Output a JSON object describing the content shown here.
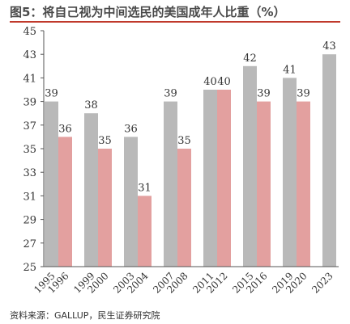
{
  "figure": {
    "title": "图5：将自己视为中间选民的美国成年人比重（%）",
    "source": "资料来源：GALLUP，民生证券研究院"
  },
  "colors": {
    "gray": "#b9b9b9",
    "pink": "#e3a09f",
    "title_rule": "#c0392b",
    "text": "#333333"
  },
  "chart_data": {
    "type": "bar",
    "title": "图5：将自己视为中间选民的美国成年人比重（%）",
    "xlabel": "",
    "ylabel": "",
    "ylim": [
      25,
      45
    ],
    "yticks": [
      25,
      27,
      29,
      31,
      33,
      35,
      37,
      39,
      41,
      43,
      45
    ],
    "grid": false,
    "legend": "none",
    "groups": [
      {
        "bars": [
          {
            "year": "1995",
            "value": 39,
            "color": "gray"
          },
          {
            "year": "1996",
            "value": 36,
            "color": "pink"
          }
        ]
      },
      {
        "bars": [
          {
            "year": "1999",
            "value": 38,
            "color": "gray"
          },
          {
            "year": "2000",
            "value": 35,
            "color": "pink"
          }
        ]
      },
      {
        "bars": [
          {
            "year": "2003",
            "value": 36,
            "color": "gray"
          },
          {
            "year": "2004",
            "value": 31,
            "color": "pink"
          }
        ]
      },
      {
        "bars": [
          {
            "year": "2007",
            "value": 39,
            "color": "gray"
          },
          {
            "year": "2008",
            "value": 35,
            "color": "pink"
          }
        ]
      },
      {
        "bars": [
          {
            "year": "2011",
            "value": 40,
            "color": "gray"
          },
          {
            "year": "2012",
            "value": 40,
            "color": "pink"
          }
        ]
      },
      {
        "bars": [
          {
            "year": "2015",
            "value": 42,
            "color": "gray"
          },
          {
            "year": "2016",
            "value": 39,
            "color": "pink"
          }
        ]
      },
      {
        "bars": [
          {
            "year": "2019",
            "value": 41,
            "color": "gray"
          },
          {
            "year": "2020",
            "value": 39,
            "color": "pink"
          }
        ]
      },
      {
        "bars": [
          {
            "year": "2023",
            "value": 43,
            "color": "gray"
          }
        ]
      }
    ]
  }
}
